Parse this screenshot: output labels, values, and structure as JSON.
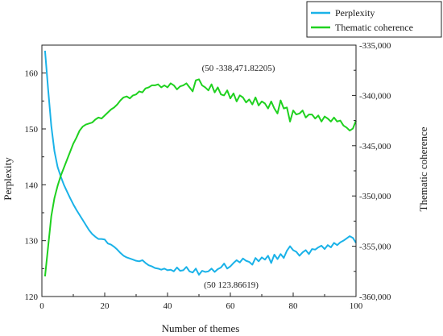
{
  "colors": {
    "perplexity": "#1ab2e8",
    "coherence": "#1fd11f",
    "axis": "#222222"
  },
  "chart_data": {
    "type": "line",
    "xlabel": "Number of themes",
    "ylabel_left": "Perplexity",
    "ylabel_right": "Thematic coherence",
    "xlim": [
      0,
      100
    ],
    "ylim_left": [
      120,
      165
    ],
    "ylim_right": [
      -360000,
      -335000
    ],
    "x_ticks": [
      0,
      20,
      40,
      60,
      80,
      100
    ],
    "y_ticks_left": [
      120,
      130,
      140,
      150,
      160
    ],
    "y_ticks_right": [
      -360000,
      -355000,
      -350000,
      -345000,
      -340000,
      -335000
    ],
    "x_tick_labels": [
      "0",
      "20",
      "40",
      "60",
      "80",
      "100"
    ],
    "y_tick_labels_left": [
      "120",
      "130",
      "140",
      "150",
      "160"
    ],
    "y_tick_labels_right": [
      "-360,000",
      "-355,000",
      "-350,000",
      "-345,000",
      "-340,000",
      "-335,000"
    ],
    "legend_position": "top-right, outside plot",
    "grid": false,
    "annotations": [
      {
        "text": "(50 -338,471.82205)",
        "x": 50,
        "axis": "right",
        "y": -338471.82205
      },
      {
        "text": "(50 123.86619)",
        "x": 50,
        "axis": "left",
        "y": 123.86619
      }
    ],
    "series": [
      {
        "name": "Perplexity",
        "axis": "left",
        "x": [
          1,
          2,
          3,
          4,
          5,
          6,
          7,
          8,
          9,
          10,
          11,
          12,
          13,
          14,
          15,
          16,
          17,
          18,
          19,
          20,
          21,
          22,
          23,
          24,
          25,
          26,
          27,
          28,
          29,
          30,
          31,
          32,
          33,
          34,
          35,
          36,
          37,
          38,
          39,
          40,
          41,
          42,
          43,
          44,
          45,
          46,
          47,
          48,
          49,
          50,
          51,
          52,
          53,
          54,
          55,
          56,
          57,
          58,
          59,
          60,
          61,
          62,
          63,
          64,
          65,
          66,
          67,
          68,
          69,
          70,
          71,
          72,
          73,
          74,
          75,
          76,
          77,
          78,
          79,
          80,
          81,
          82,
          83,
          84,
          85,
          86,
          87,
          88,
          89,
          90,
          91,
          92,
          93,
          94,
          95,
          96,
          97,
          98,
          99,
          100
        ],
        "y": [
          164.0,
          157.0,
          150.5,
          146.0,
          143.2,
          141.5,
          140.0,
          138.8,
          137.6,
          136.5,
          135.5,
          134.6,
          133.7,
          132.8,
          131.9,
          131.2,
          130.7,
          130.3,
          130.3,
          130.2,
          129.5,
          129.3,
          128.9,
          128.4,
          127.8,
          127.3,
          127.0,
          126.8,
          126.6,
          126.4,
          126.3,
          126.5,
          126.0,
          125.6,
          125.4,
          125.1,
          125.0,
          124.8,
          125.0,
          124.7,
          124.8,
          124.5,
          125.2,
          124.6,
          124.7,
          125.3,
          124.5,
          124.3,
          125.0,
          123.9,
          124.6,
          124.4,
          124.5,
          125.0,
          124.4,
          124.9,
          125.2,
          125.9,
          125.0,
          125.4,
          126.0,
          126.5,
          126.1,
          126.8,
          126.4,
          126.2,
          125.7,
          126.9,
          126.3,
          127.0,
          126.6,
          127.3,
          126.0,
          127.5,
          126.7,
          127.6,
          126.9,
          128.2,
          129.0,
          128.3,
          128.0,
          127.3,
          127.9,
          128.3,
          127.6,
          128.5,
          128.4,
          128.8,
          129.1,
          128.5,
          129.2,
          128.8,
          129.6,
          129.2,
          129.7,
          130.0,
          130.4,
          130.8,
          130.5,
          129.6
        ]
      },
      {
        "name": "Thematic coherence",
        "axis": "right",
        "x": [
          1,
          2,
          3,
          4,
          5,
          6,
          7,
          8,
          9,
          10,
          11,
          12,
          13,
          14,
          15,
          16,
          17,
          18,
          19,
          20,
          21,
          22,
          23,
          24,
          25,
          26,
          27,
          28,
          29,
          30,
          31,
          32,
          33,
          34,
          35,
          36,
          37,
          38,
          39,
          40,
          41,
          42,
          43,
          44,
          45,
          46,
          47,
          48,
          49,
          50,
          51,
          52,
          53,
          54,
          55,
          56,
          57,
          58,
          59,
          60,
          61,
          62,
          63,
          64,
          65,
          66,
          67,
          68,
          69,
          70,
          71,
          72,
          73,
          74,
          75,
          76,
          77,
          78,
          79,
          80,
          81,
          82,
          83,
          84,
          85,
          86,
          87,
          88,
          89,
          90,
          91,
          92,
          93,
          94,
          95,
          96,
          97,
          98,
          99,
          100
        ],
        "y": [
          -358000,
          -355000,
          -352000,
          -350200,
          -349000,
          -348000,
          -347200,
          -346400,
          -345600,
          -344800,
          -344200,
          -343500,
          -343100,
          -342900,
          -342800,
          -342700,
          -342400,
          -342200,
          -342300,
          -342000,
          -341700,
          -341400,
          -341200,
          -340900,
          -340500,
          -340200,
          -340100,
          -340300,
          -340000,
          -339900,
          -339600,
          -339700,
          -339300,
          -339200,
          -339000,
          -339000,
          -338900,
          -339200,
          -339000,
          -339200,
          -338800,
          -339000,
          -339400,
          -339100,
          -339000,
          -338800,
          -339200,
          -339600,
          -338500,
          -338400,
          -339000,
          -339200,
          -339500,
          -338900,
          -339700,
          -339200,
          -339900,
          -340000,
          -339500,
          -340300,
          -339800,
          -340600,
          -340000,
          -340200,
          -340700,
          -340400,
          -340900,
          -340200,
          -341000,
          -340600,
          -340800,
          -341300,
          -340600,
          -341300,
          -341800,
          -340500,
          -341300,
          -341200,
          -342600,
          -341500,
          -341900,
          -341800,
          -341500,
          -342200,
          -341900,
          -341900,
          -342300,
          -342000,
          -342600,
          -342100,
          -342300,
          -342600,
          -342200,
          -342600,
          -342500,
          -343000,
          -343200,
          -343500,
          -343300,
          -342500
        ]
      }
    ]
  }
}
